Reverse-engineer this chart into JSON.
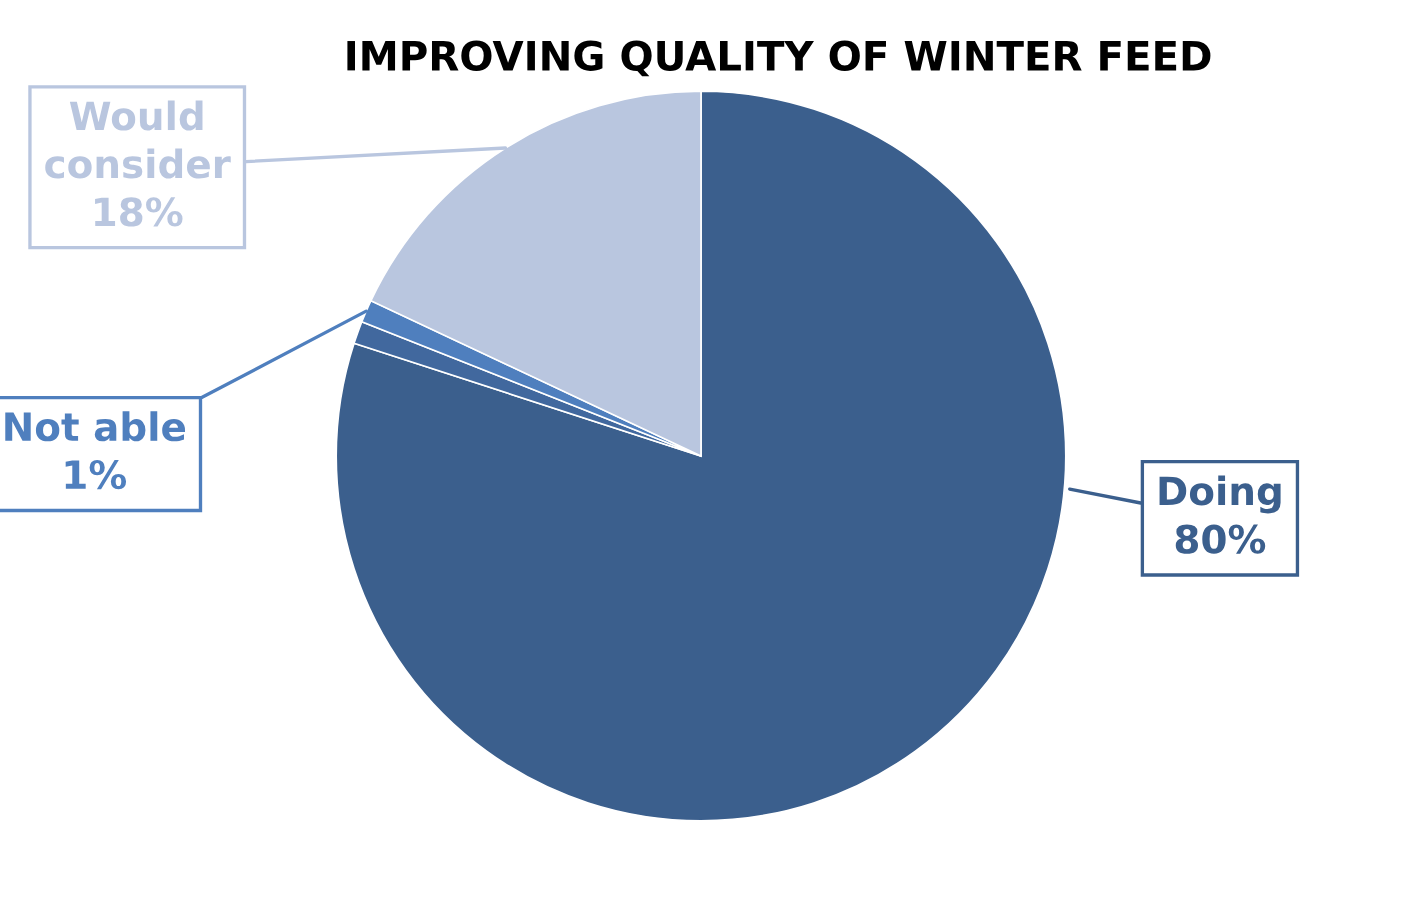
{
  "chart_data": {
    "type": "pie",
    "title": "IMPROVING QUALITY OF WINTER FEED",
    "categories": [
      "Doing",
      null,
      "Not able",
      "Would consider"
    ],
    "values": [
      80,
      1,
      1,
      18
    ],
    "value_labels": [
      "80%",
      null,
      "1%",
      "18%"
    ],
    "colors": [
      "#3b5f8d",
      "#41689e",
      "#4f7fbe",
      "#b9c6df"
    ],
    "legend": false
  }
}
